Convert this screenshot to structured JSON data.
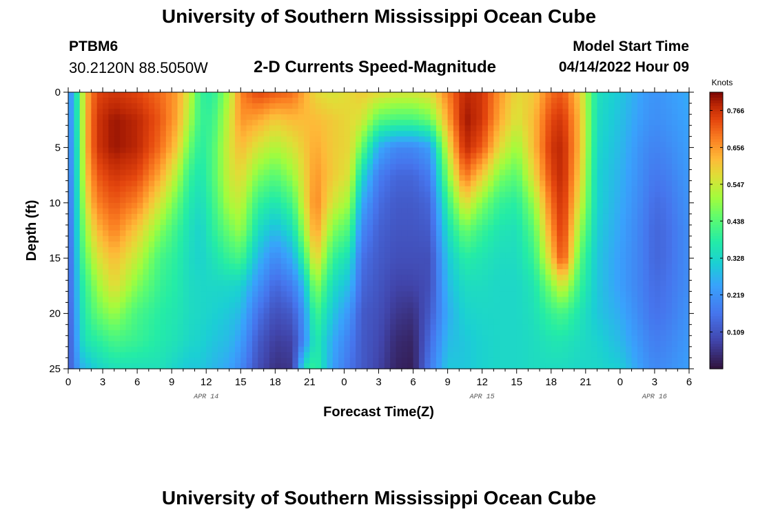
{
  "header": {
    "title": "University of Southern Mississippi Ocean Cube",
    "station": "PTBM6",
    "coords": "30.2120N  88.5050W",
    "subtitle": "2-D Currents Speed-Magnitude",
    "model_start_label": "Model Start Time",
    "model_start_value": "04/14/2022 Hour 09"
  },
  "footer": {
    "title": "University of Southern Mississippi Ocean Cube"
  },
  "chart_data": {
    "type": "heatmap",
    "title": "2-D Currents Speed-Magnitude",
    "xlabel": "Forecast Time(Z)",
    "ylabel": "Depth (ft)",
    "x_range_hours": [
      0,
      54
    ],
    "y_range": [
      0,
      25
    ],
    "x_tick_labels": [
      "0",
      "3",
      "6",
      "9",
      "12",
      "15",
      "18",
      "21",
      "0",
      "3",
      "6",
      "9",
      "12",
      "15",
      "18",
      "21",
      "0",
      "3",
      "6"
    ],
    "y_ticks": [
      0,
      5,
      10,
      15,
      20,
      25
    ],
    "date_labels": [
      {
        "text": "APR 14",
        "hour": 12
      },
      {
        "text": "APR 15",
        "hour": 36
      },
      {
        "text": "APR 16",
        "hour": 51
      }
    ],
    "colorbar": {
      "unit": "Knots",
      "min": 0,
      "max": 0.82,
      "ticks": [
        "0.766",
        "0.656",
        "0.547",
        "0.438",
        "0.328",
        "0.219",
        "0.109"
      ],
      "tick_values": [
        0.766,
        0.656,
        0.547,
        0.438,
        0.328,
        0.219,
        0.109
      ]
    },
    "profile_hours": [
      0,
      0.5,
      1,
      1.5,
      2.5,
      4,
      6,
      8,
      9.5,
      10.5,
      11.5,
      12.5,
      14,
      15,
      16.5,
      18,
      19.5,
      20.5,
      21.5,
      23,
      24.5,
      25.5,
      27,
      28.5,
      30,
      31.5,
      33,
      34.5,
      36,
      37.5,
      39,
      40.5,
      42,
      43,
      44.5,
      46,
      48,
      50,
      51,
      52,
      54
    ],
    "profile_depths": [
      0,
      2.5,
      5,
      7.5,
      10,
      12.5,
      15,
      17.5,
      20,
      22.5,
      25
    ],
    "speed_knots": [
      [
        0.2,
        0.2,
        0.19,
        0.18,
        0.17,
        0.16,
        0.15,
        0.14,
        0.13,
        0.12,
        0.12
      ],
      [
        0.28,
        0.27,
        0.26,
        0.25,
        0.24,
        0.22,
        0.21,
        0.2,
        0.19,
        0.18,
        0.17
      ],
      [
        0.45,
        0.44,
        0.43,
        0.42,
        0.41,
        0.4,
        0.38,
        0.35,
        0.33,
        0.31,
        0.26
      ],
      [
        0.62,
        0.62,
        0.62,
        0.6,
        0.56,
        0.5,
        0.45,
        0.4,
        0.38,
        0.36,
        0.28
      ],
      [
        0.74,
        0.76,
        0.76,
        0.72,
        0.68,
        0.62,
        0.56,
        0.5,
        0.45,
        0.38,
        0.32
      ],
      [
        0.76,
        0.8,
        0.8,
        0.76,
        0.72,
        0.68,
        0.62,
        0.58,
        0.5,
        0.42,
        0.35
      ],
      [
        0.74,
        0.78,
        0.78,
        0.74,
        0.68,
        0.6,
        0.54,
        0.48,
        0.42,
        0.4,
        0.35
      ],
      [
        0.7,
        0.72,
        0.7,
        0.64,
        0.56,
        0.48,
        0.42,
        0.4,
        0.38,
        0.37,
        0.35
      ],
      [
        0.65,
        0.64,
        0.6,
        0.52,
        0.45,
        0.4,
        0.38,
        0.37,
        0.36,
        0.35,
        0.32
      ],
      [
        0.55,
        0.52,
        0.46,
        0.4,
        0.37,
        0.35,
        0.34,
        0.34,
        0.34,
        0.33,
        0.3
      ],
      [
        0.4,
        0.4,
        0.38,
        0.36,
        0.34,
        0.32,
        0.32,
        0.33,
        0.33,
        0.32,
        0.3
      ],
      [
        0.38,
        0.4,
        0.42,
        0.42,
        0.4,
        0.38,
        0.35,
        0.33,
        0.32,
        0.3,
        0.28
      ],
      [
        0.52,
        0.55,
        0.56,
        0.55,
        0.52,
        0.46,
        0.4,
        0.33,
        0.3,
        0.28,
        0.25
      ],
      [
        0.68,
        0.66,
        0.62,
        0.58,
        0.54,
        0.5,
        0.42,
        0.32,
        0.28,
        0.24,
        0.2
      ],
      [
        0.74,
        0.64,
        0.56,
        0.48,
        0.4,
        0.34,
        0.28,
        0.22,
        0.16,
        0.12,
        0.1
      ],
      [
        0.72,
        0.6,
        0.52,
        0.44,
        0.36,
        0.28,
        0.2,
        0.14,
        0.1,
        0.07,
        0.05
      ],
      [
        0.7,
        0.62,
        0.56,
        0.5,
        0.42,
        0.34,
        0.26,
        0.18,
        0.12,
        0.08,
        0.06
      ],
      [
        0.64,
        0.62,
        0.6,
        0.58,
        0.56,
        0.5,
        0.4,
        0.28,
        0.22,
        0.2,
        0.35
      ],
      [
        0.58,
        0.62,
        0.64,
        0.66,
        0.68,
        0.66,
        0.6,
        0.5,
        0.42,
        0.38,
        0.4
      ],
      [
        0.56,
        0.6,
        0.6,
        0.6,
        0.56,
        0.48,
        0.4,
        0.34,
        0.3,
        0.26,
        0.24
      ],
      [
        0.58,
        0.58,
        0.58,
        0.56,
        0.5,
        0.42,
        0.34,
        0.28,
        0.22,
        0.18,
        0.16
      ],
      [
        0.6,
        0.56,
        0.46,
        0.34,
        0.26,
        0.2,
        0.16,
        0.14,
        0.12,
        0.12,
        0.12
      ],
      [
        0.58,
        0.44,
        0.26,
        0.18,
        0.15,
        0.13,
        0.12,
        0.11,
        0.1,
        0.09,
        0.08
      ],
      [
        0.56,
        0.42,
        0.2,
        0.14,
        0.12,
        0.11,
        0.1,
        0.08,
        0.06,
        0.04,
        0.03
      ],
      [
        0.56,
        0.42,
        0.2,
        0.14,
        0.12,
        0.11,
        0.1,
        0.08,
        0.05,
        0.03,
        0.02
      ],
      [
        0.58,
        0.46,
        0.24,
        0.18,
        0.14,
        0.12,
        0.1,
        0.1,
        0.12,
        0.15,
        0.18
      ],
      [
        0.68,
        0.64,
        0.56,
        0.48,
        0.4,
        0.34,
        0.3,
        0.28,
        0.26,
        0.28,
        0.3
      ],
      [
        0.78,
        0.8,
        0.78,
        0.7,
        0.58,
        0.46,
        0.38,
        0.34,
        0.32,
        0.3,
        0.3
      ],
      [
        0.76,
        0.76,
        0.72,
        0.6,
        0.48,
        0.4,
        0.36,
        0.34,
        0.33,
        0.32,
        0.32
      ],
      [
        0.66,
        0.64,
        0.58,
        0.48,
        0.4,
        0.36,
        0.34,
        0.33,
        0.33,
        0.33,
        0.33
      ],
      [
        0.58,
        0.56,
        0.5,
        0.44,
        0.38,
        0.35,
        0.34,
        0.33,
        0.33,
        0.33,
        0.33
      ],
      [
        0.6,
        0.62,
        0.62,
        0.58,
        0.5,
        0.44,
        0.4,
        0.36,
        0.35,
        0.34,
        0.34
      ],
      [
        0.7,
        0.74,
        0.76,
        0.74,
        0.7,
        0.66,
        0.6,
        0.48,
        0.4,
        0.36,
        0.34
      ],
      [
        0.72,
        0.76,
        0.78,
        0.78,
        0.77,
        0.76,
        0.74,
        0.56,
        0.42,
        0.36,
        0.34
      ],
      [
        0.6,
        0.62,
        0.62,
        0.6,
        0.56,
        0.5,
        0.44,
        0.4,
        0.36,
        0.34,
        0.33
      ],
      [
        0.35,
        0.34,
        0.33,
        0.32,
        0.32,
        0.31,
        0.3,
        0.3,
        0.3,
        0.32,
        0.33
      ],
      [
        0.3,
        0.29,
        0.28,
        0.27,
        0.26,
        0.25,
        0.24,
        0.24,
        0.26,
        0.28,
        0.31
      ],
      [
        0.24,
        0.23,
        0.21,
        0.2,
        0.19,
        0.18,
        0.18,
        0.18,
        0.19,
        0.21,
        0.23
      ],
      [
        0.22,
        0.21,
        0.19,
        0.17,
        0.15,
        0.14,
        0.14,
        0.15,
        0.16,
        0.18,
        0.2
      ],
      [
        0.23,
        0.22,
        0.2,
        0.18,
        0.16,
        0.15,
        0.15,
        0.16,
        0.17,
        0.19,
        0.21
      ],
      [
        0.26,
        0.25,
        0.24,
        0.23,
        0.22,
        0.21,
        0.21,
        0.21,
        0.22,
        0.23,
        0.24
      ]
    ]
  }
}
